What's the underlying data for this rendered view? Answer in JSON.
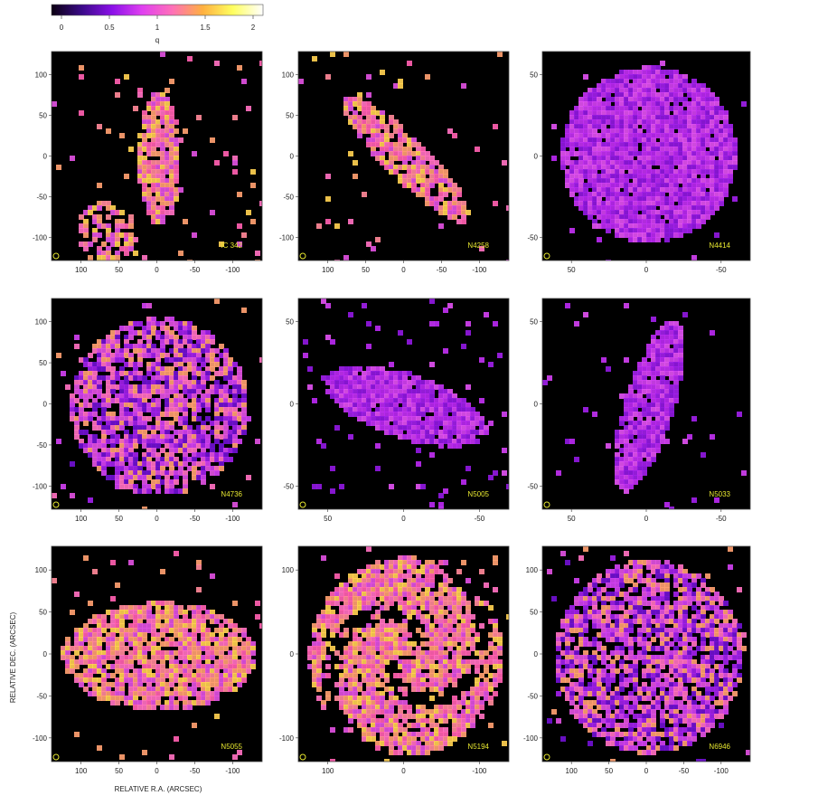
{
  "colorbar": {
    "label": "q",
    "ticks": [
      "0",
      "0.5",
      "1",
      "1.5",
      "2"
    ],
    "colors": [
      "#0a0010",
      "#3a0a88",
      "#8a10e8",
      "#e040f0",
      "#ff70b8",
      "#ffb040",
      "#ffff60",
      "#ffffff"
    ]
  },
  "axis_labels": {
    "dec": "RELATIVE DEC. (ARCSEC)",
    "ra": "RELATIVE R.A. (ARCSEC)"
  },
  "beam_color": "#e8e830",
  "panels": [
    {
      "name": "IC 342",
      "xticks": [
        "100",
        "50",
        "0",
        "-50",
        "-100"
      ],
      "yticks": [
        "100",
        "50",
        "0",
        "-50",
        "-100"
      ],
      "morph": "bar",
      "tone": "warm"
    },
    {
      "name": "N4258",
      "xticks": [
        "100",
        "50",
        "0",
        "-50",
        "-100"
      ],
      "yticks": [
        "100",
        "50",
        "0",
        "-50",
        "-100"
      ],
      "morph": "diag",
      "tone": "warm"
    },
    {
      "name": "N4414",
      "xticks": [
        "50",
        "0",
        "-50"
      ],
      "yticks": [
        "50",
        "0",
        "-50"
      ],
      "morph": "blob",
      "tone": "violet"
    },
    {
      "name": "N4736",
      "xticks": [
        "100",
        "50",
        "0",
        "-50",
        "-100"
      ],
      "yticks": [
        "100",
        "50",
        "0",
        "-50",
        "-100"
      ],
      "morph": "ring",
      "tone": "mixed"
    },
    {
      "name": "N5005",
      "xticks": [
        "50",
        "0",
        "-50"
      ],
      "yticks": [
        "50",
        "0",
        "-50"
      ],
      "morph": "elong",
      "tone": "violet"
    },
    {
      "name": "N5033",
      "xticks": [
        "50",
        "0",
        "-50"
      ],
      "yticks": [
        "50",
        "0",
        "-50"
      ],
      "morph": "vert",
      "tone": "violet"
    },
    {
      "name": "N5055",
      "xticks": [
        "100",
        "50",
        "0",
        "-50",
        "-100"
      ],
      "yticks": [
        "100",
        "50",
        "0",
        "-50",
        "-100"
      ],
      "morph": "wide",
      "tone": "warm"
    },
    {
      "name": "N5194",
      "xticks": [
        "100",
        "0",
        "-100"
      ],
      "yticks": [
        "100",
        "0",
        "-100"
      ],
      "morph": "spiral",
      "tone": "warm"
    },
    {
      "name": "N6946",
      "xticks": [
        "100",
        "50",
        "0",
        "-50",
        "-100"
      ],
      "yticks": [
        "100",
        "50",
        "0",
        "-50",
        "-100"
      ],
      "morph": "disk",
      "tone": "mixed"
    }
  ]
}
